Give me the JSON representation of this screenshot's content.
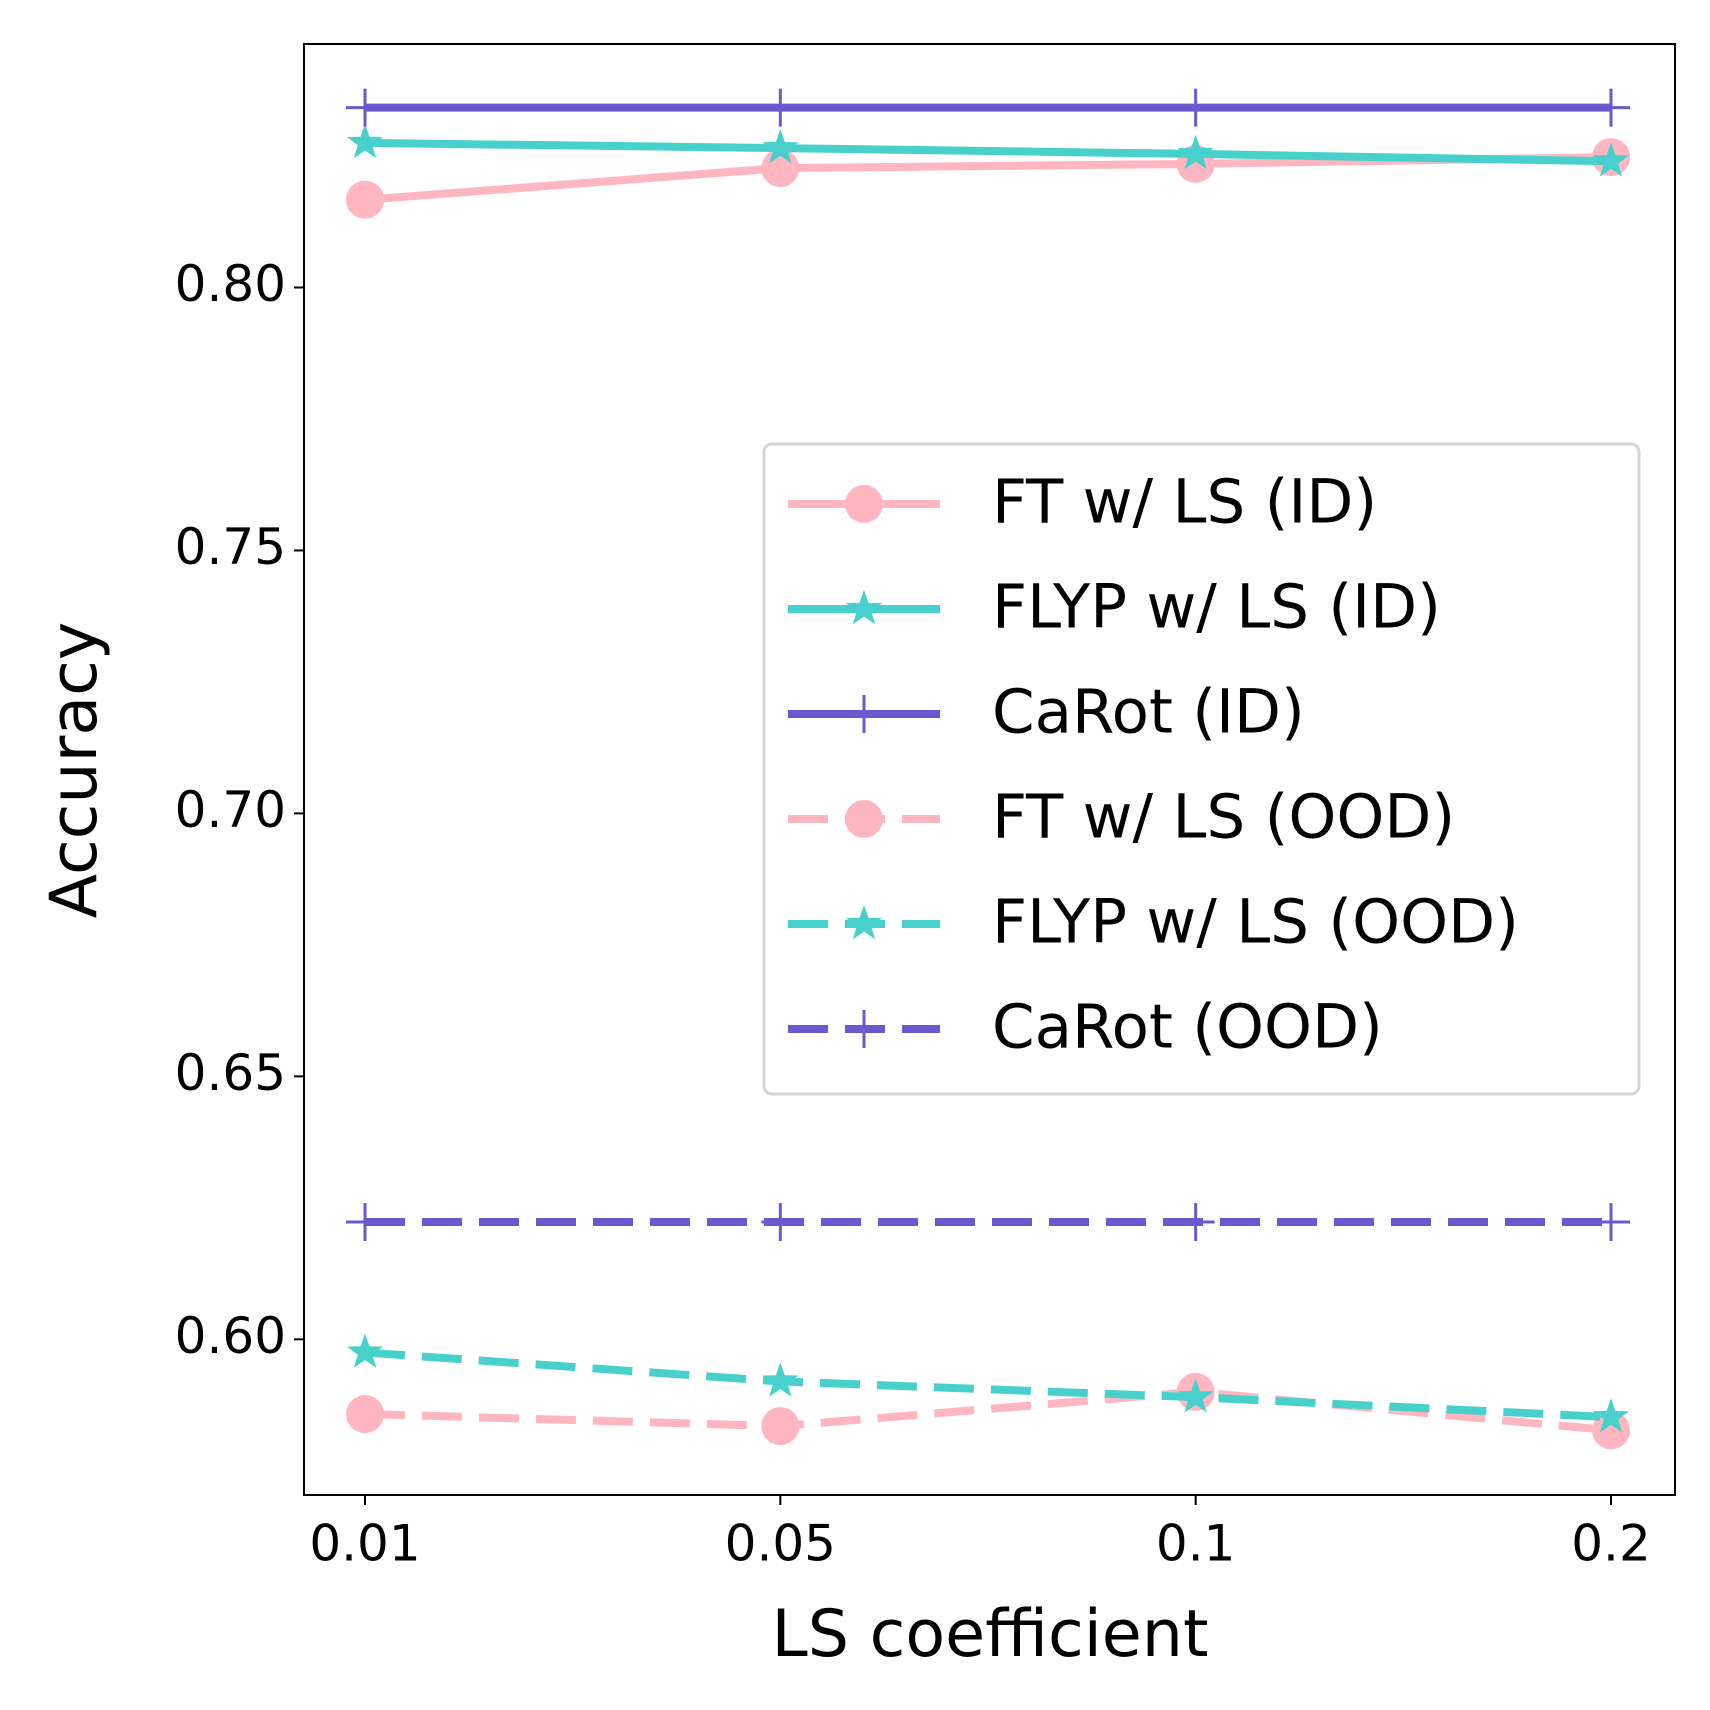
{
  "chart_data": {
    "type": "line",
    "xlabel": "LS coefficient",
    "ylabel": "Accuracy",
    "categories": [
      "0.01",
      "0.05",
      "0.1",
      "0.2"
    ],
    "ylim": [
      0.5704,
      0.8463
    ],
    "yticks": [
      {
        "value": 0.6,
        "label": "0.60"
      },
      0.65,
      {
        "value": 0.7,
        "label": "0.70"
      },
      0.75,
      {
        "value": 0.8,
        "label": "0.80"
      }
    ],
    "grid": false,
    "legend": "center right",
    "series": [
      {
        "name": "FT w/ LS (ID)",
        "color": "#ffb6c1",
        "marker": "circle",
        "linestyle": "solid",
        "values": [
          0.8167,
          0.8227,
          0.8235,
          0.8248
        ]
      },
      {
        "name": "FLYP w/ LS (ID)",
        "color": "#48d1cc",
        "marker": "star",
        "linestyle": "solid",
        "values": [
          0.8275,
          0.8265,
          0.8254,
          0.824
        ]
      },
      {
        "name": "CaRot (ID)",
        "color": "#6a5acd",
        "marker": "plus",
        "linestyle": "solid",
        "values": [
          0.8342,
          0.8342,
          0.8342,
          0.8342
        ]
      },
      {
        "name": "FT w/ LS (OOD)",
        "color": "#ffb6c1",
        "marker": "circle",
        "linestyle": "dashed",
        "values": [
          0.5858,
          0.5835,
          0.59,
          0.5827
        ]
      },
      {
        "name": "FLYP w/ LS (OOD)",
        "color": "#48d1cc",
        "marker": "star",
        "linestyle": "dashed",
        "values": [
          0.5975,
          0.592,
          0.589,
          0.5852
        ]
      },
      {
        "name": "CaRot (OOD)",
        "color": "#6a5acd",
        "marker": "plus",
        "linestyle": "dashed",
        "values": [
          0.6223,
          0.6223,
          0.6223,
          0.6223
        ]
      }
    ]
  }
}
